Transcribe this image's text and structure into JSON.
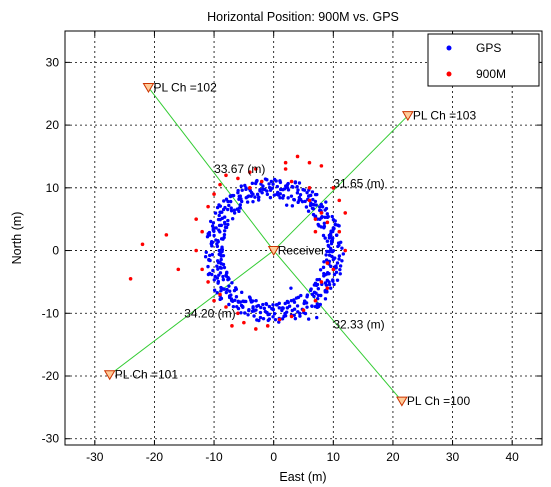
{
  "chart_data": {
    "type": "scatter",
    "title": "Horizontal Position: 900M vs. GPS",
    "xlabel": "East (m)",
    "ylabel": "North (m)",
    "xlim": [
      -35,
      45
    ],
    "ylim": [
      -31,
      35
    ],
    "xticks": [
      -30,
      -20,
      -10,
      0,
      10,
      20,
      30,
      40
    ],
    "yticks": [
      -30,
      -20,
      -10,
      0,
      10,
      20,
      30
    ],
    "grid": "on",
    "legend_position": "top-right",
    "series": [
      {
        "name": "GPS",
        "color": "#0000ff",
        "marker": "dot",
        "pattern": "ring",
        "center": [
          0,
          0
        ],
        "radius": 10,
        "approx_points": 500
      },
      {
        "name": "900M",
        "color": "#ff0000",
        "marker": "dot",
        "values": [
          [
            -8,
            12
          ],
          [
            -6,
            11.5
          ],
          [
            -4,
            12.5
          ],
          [
            2,
            13
          ],
          [
            4,
            15
          ],
          [
            6,
            14
          ],
          [
            8,
            13.5
          ],
          [
            10,
            10
          ],
          [
            11,
            8
          ],
          [
            12,
            6
          ],
          [
            11,
            3
          ],
          [
            12,
            0
          ],
          [
            10,
            -3
          ],
          [
            9,
            -6
          ],
          [
            7,
            -8
          ],
          [
            5,
            -9.5
          ],
          [
            3,
            -10.5
          ],
          [
            1,
            -11
          ],
          [
            -1,
            -12
          ],
          [
            -3,
            -12.5
          ],
          [
            -5,
            -11.5
          ],
          [
            -6,
            -10
          ],
          [
            -8,
            -9
          ],
          [
            -9,
            -7
          ],
          [
            -11,
            -5
          ],
          [
            -12,
            -3
          ],
          [
            -13,
            0
          ],
          [
            -12,
            3
          ],
          [
            -13,
            5
          ],
          [
            -11,
            7
          ],
          [
            -10,
            9
          ],
          [
            -9,
            10.5
          ],
          [
            -18,
            2.5
          ],
          [
            -22,
            1
          ],
          [
            -24,
            -4.5
          ],
          [
            -16,
            -3
          ],
          [
            -4,
            10
          ],
          [
            -2,
            11
          ],
          [
            3,
            11
          ],
          [
            6,
            10
          ],
          [
            7,
            3
          ],
          [
            8,
            6
          ],
          [
            9,
            4.5
          ],
          [
            7,
            5
          ],
          [
            6,
            8
          ],
          [
            2,
            14
          ],
          [
            -3,
            13
          ],
          [
            9,
            -2
          ],
          [
            8,
            -5
          ],
          [
            -10,
            -8
          ],
          [
            -7,
            -12
          ]
        ]
      }
    ],
    "receiver": {
      "label": "Receiver",
      "x": 0,
      "y": 0
    },
    "transmitters": [
      {
        "label": "PL Ch =102",
        "x": -21,
        "y": 26
      },
      {
        "label": "PL Ch =103",
        "x": 22.5,
        "y": 21.5
      },
      {
        "label": "PL Ch =101",
        "x": -27.5,
        "y": -19.8
      },
      {
        "label": "PL Ch =100",
        "x": 21.5,
        "y": -24
      }
    ],
    "distance_labels": [
      {
        "text": "33.67 (m)",
        "x": -10,
        "y": 13
      },
      {
        "text": "31.65 (m)",
        "x": 10,
        "y": 10.7
      },
      {
        "text": "34.20 (m)",
        "x": -15,
        "y": -10
      },
      {
        "text": "32.33 (m)",
        "x": 10,
        "y": -11.8
      }
    ]
  }
}
